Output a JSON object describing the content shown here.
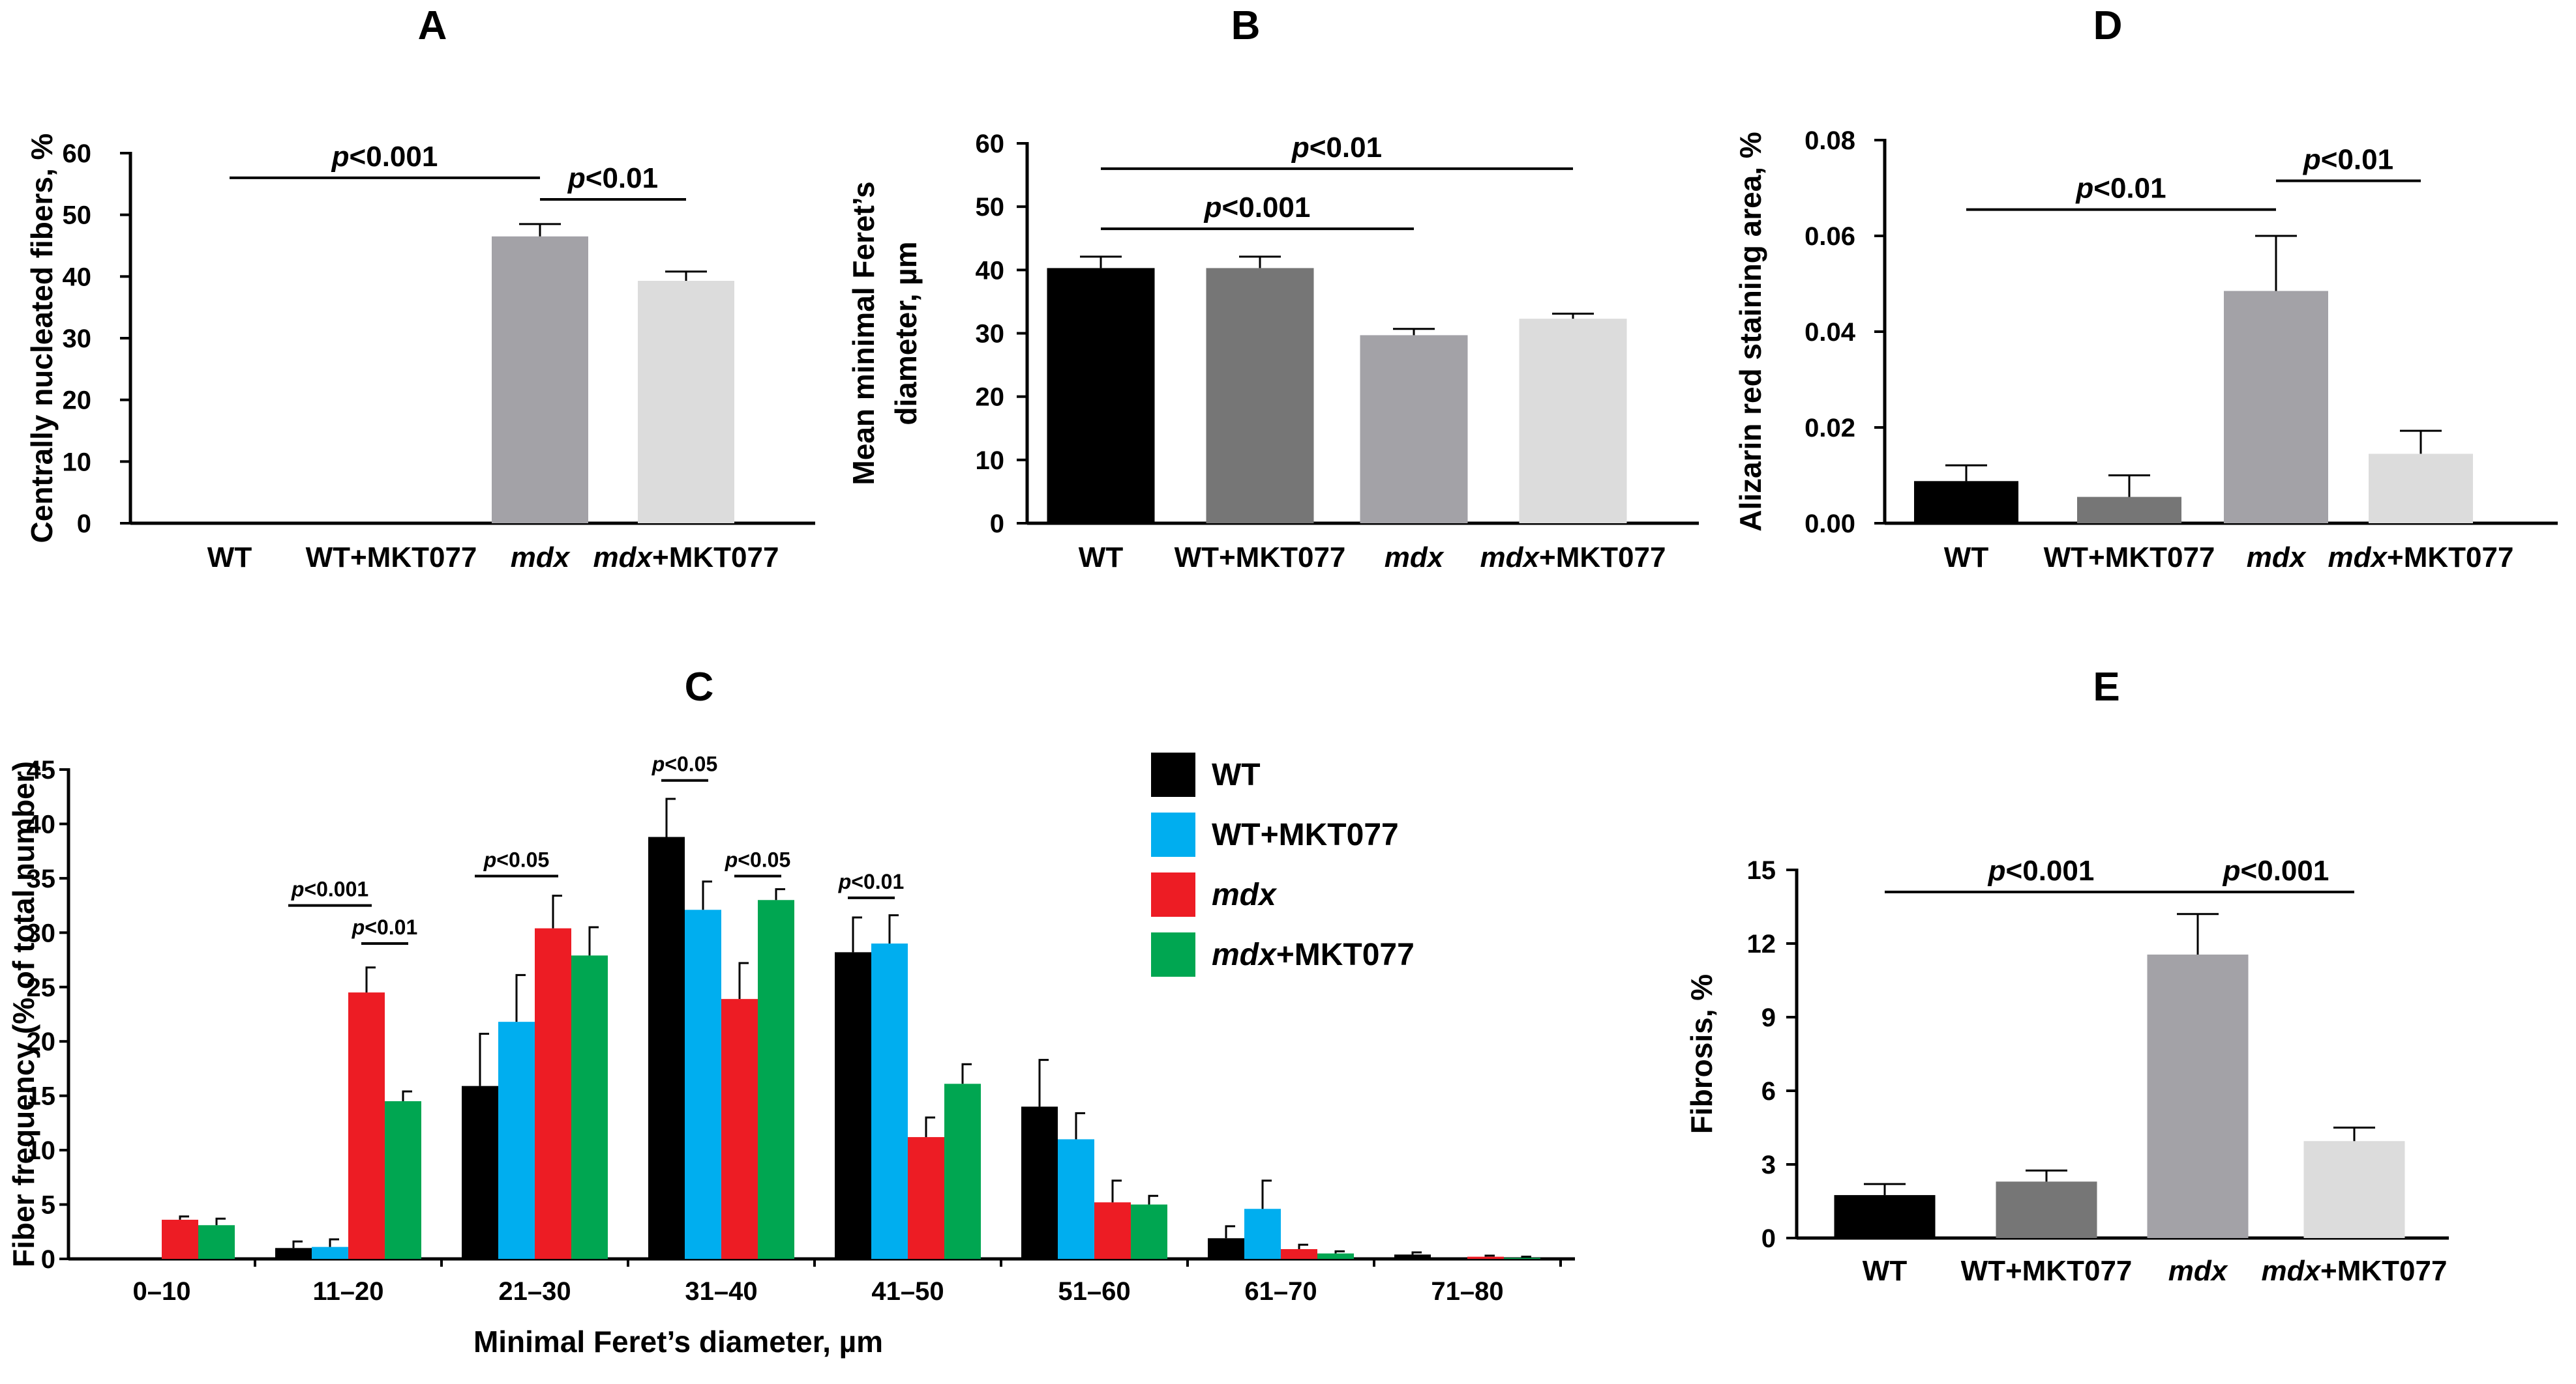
{
  "chart_data": [
    {
      "id": "A",
      "type": "bar",
      "panel_label": "A",
      "ylabel": "Centrally nucleated fibers, %",
      "ylim": [
        0,
        60
      ],
      "yticks": [
        0,
        10,
        20,
        30,
        40,
        50,
        60
      ],
      "categories": [
        {
          "label": "WT",
          "italic": "",
          "rest": "WT"
        },
        {
          "label": "WT+MKT077",
          "italic": "",
          "rest": "WT+MKT077"
        },
        {
          "label": "mdx",
          "italic": "mdx",
          "rest": ""
        },
        {
          "label": "mdx+MKT077",
          "italic": "mdx",
          "rest": "+MKT077"
        }
      ],
      "values": [
        0,
        0,
        46.5,
        39.3
      ],
      "errors": [
        0,
        0,
        2.0,
        1.5
      ],
      "colors": [
        "#000000",
        "#767676",
        "#a3a2a7",
        "#dcdcdc"
      ],
      "significance": [
        {
          "from": 0,
          "to": 2,
          "y": 56,
          "p": "p",
          "text": "<0.001"
        },
        {
          "from": 2,
          "to": 3,
          "y": 52.5,
          "p": "p",
          "text": "<0.01"
        }
      ]
    },
    {
      "id": "B",
      "type": "bar",
      "panel_label": "B",
      "ylabel_line1": "Mean minimal Feret’s",
      "ylabel_line2": "diameter, µm",
      "ylim": [
        0,
        60
      ],
      "yticks": [
        0,
        10,
        20,
        30,
        40,
        50,
        60
      ],
      "categories": [
        {
          "label": "WT",
          "italic": "",
          "rest": "WT"
        },
        {
          "label": "WT+MKT077",
          "italic": "",
          "rest": "WT+MKT077"
        },
        {
          "label": "mdx",
          "italic": "mdx",
          "rest": ""
        },
        {
          "label": "mdx+MKT077",
          "italic": "mdx",
          "rest": "+MKT077"
        }
      ],
      "values": [
        40.3,
        40.3,
        29.7,
        32.3
      ],
      "errors": [
        1.8,
        1.8,
        1.0,
        0.8
      ],
      "colors": [
        "#000000",
        "#767676",
        "#a3a2a7",
        "#dcdcdc"
      ],
      "significance": [
        {
          "from": 0,
          "to": 3,
          "y": 56,
          "p": "p",
          "text": "<0.01"
        },
        {
          "from": 0,
          "to": 2,
          "y": 46.5,
          "p": "p",
          "text": "<0.001"
        }
      ]
    },
    {
      "id": "D",
      "type": "bar",
      "panel_label": "D",
      "ylabel": "Alizarin red staining area, %",
      "ylim": [
        0,
        0.08
      ],
      "yticks": [
        "0.00",
        "0.02",
        "0.04",
        "0.06",
        "0.08"
      ],
      "categories": [
        {
          "label": "WT",
          "italic": "",
          "rest": "WT"
        },
        {
          "label": "WT+MKT077",
          "italic": "",
          "rest": "WT+MKT077"
        },
        {
          "label": "mdx",
          "italic": "mdx",
          "rest": ""
        },
        {
          "label": "mdx+MKT077",
          "italic": "mdx",
          "rest": "+MKT077"
        }
      ],
      "values": [
        0.0088,
        0.0055,
        0.0485,
        0.0145
      ],
      "errors": [
        0.0033,
        0.0045,
        0.0115,
        0.0048
      ],
      "colors": [
        "#000000",
        "#767676",
        "#a3a2a7",
        "#dcdcdc"
      ],
      "significance": [
        {
          "from": 0,
          "to": 2,
          "y": 0.0655,
          "p": "p",
          "text": "<0.01"
        },
        {
          "from": 2,
          "to": 3,
          "y": 0.0715,
          "p": "p",
          "text": "<0.01"
        }
      ]
    },
    {
      "id": "E",
      "type": "bar",
      "panel_label": "E",
      "ylabel": "Fibrosis, %",
      "ylim": [
        0,
        15
      ],
      "yticks": [
        0,
        3,
        6,
        9,
        12,
        15
      ],
      "categories": [
        {
          "label": "WT",
          "italic": "",
          "rest": "WT"
        },
        {
          "label": "WT+MKT077",
          "italic": "",
          "rest": "WT+MKT077"
        },
        {
          "label": "mdx",
          "italic": "mdx",
          "rest": ""
        },
        {
          "label": "mdx+MKT077",
          "italic": "mdx",
          "rest": "+MKT077"
        }
      ],
      "values": [
        1.75,
        2.3,
        11.55,
        3.95
      ],
      "errors": [
        0.45,
        0.45,
        1.65,
        0.55
      ],
      "colors": [
        "#000000",
        "#767676",
        "#a3a2a7",
        "#dcdcdc"
      ],
      "significance": [
        {
          "from": 0,
          "to": 2,
          "y": 14.1,
          "p": "p",
          "text": "<0.001"
        },
        {
          "from": 2,
          "to": 3,
          "y": 14.1,
          "p": "p",
          "text": "<0.001"
        }
      ]
    },
    {
      "id": "C",
      "type": "bar",
      "panel_label": "C",
      "ylabel": "Fiber frequency (% of total number)",
      "xlabel": "Minimal Feret’s diameter, µm",
      "ylim": [
        0,
        45
      ],
      "yticks": [
        0,
        5,
        10,
        15,
        20,
        25,
        30,
        35,
        40,
        45
      ],
      "categories": [
        "0–10",
        "11–20",
        "21–30",
        "31–40",
        "41–50",
        "51–60",
        "61–70",
        "71–80"
      ],
      "series": [
        {
          "name": "WT",
          "italic": "",
          "rest": "WT",
          "color": "#000000",
          "values": [
            0,
            1.0,
            15.9,
            38.8,
            28.2,
            14.0,
            1.9,
            0.4
          ],
          "errors": [
            0,
            0.6,
            4.8,
            3.5,
            3.2,
            4.3,
            1.1,
            0.2
          ]
        },
        {
          "name": "WT+MKT077",
          "italic": "",
          "rest": "WT+MKT077",
          "color": "#00aeef",
          "values": [
            0,
            1.1,
            21.8,
            32.1,
            29.0,
            11.0,
            4.6,
            0
          ],
          "errors": [
            0,
            0.7,
            4.3,
            2.6,
            2.6,
            2.4,
            2.6,
            0
          ]
        },
        {
          "name": "mdx",
          "italic": "mdx",
          "rest": "",
          "color": "#ed1c24",
          "values": [
            3.6,
            24.5,
            30.4,
            23.9,
            11.2,
            5.2,
            0.9,
            0.2
          ],
          "errors": [
            0.3,
            2.3,
            3.0,
            3.3,
            1.8,
            2.0,
            0.4,
            0.1
          ]
        },
        {
          "name": "mdx+MKT077",
          "italic": "mdx",
          "rest": "+MKT077",
          "color": "#00a651",
          "values": [
            3.1,
            14.5,
            27.9,
            33.0,
            16.1,
            5.0,
            0.5,
            0.1
          ],
          "errors": [
            0.6,
            0.9,
            2.6,
            1.0,
            1.8,
            0.8,
            0.2,
            0.1
          ]
        }
      ],
      "significance": [
        {
          "cat": 1,
          "s1": 0,
          "s2": 2,
          "y": 32.5,
          "p": "p",
          "text": "<0.001"
        },
        {
          "cat": 1,
          "s1": 2,
          "s2": 3,
          "y": 29.0,
          "p": "p",
          "text": "<0.01"
        },
        {
          "cat": 2,
          "s1": 0,
          "s2": 2,
          "y": 35.2,
          "p": "p",
          "text": "<0.05"
        },
        {
          "cat": 3,
          "s1": 0,
          "s2": 1,
          "y": 44.0,
          "p": "p",
          "text": "<0.05"
        },
        {
          "cat": 3,
          "s1": 2,
          "s2": 3,
          "y": 35.2,
          "p": "p",
          "text": "<0.05"
        },
        {
          "cat": 4,
          "s1": 0,
          "s2": 1,
          "y": 33.2,
          "p": "p",
          "text": "<0.01"
        }
      ]
    }
  ]
}
